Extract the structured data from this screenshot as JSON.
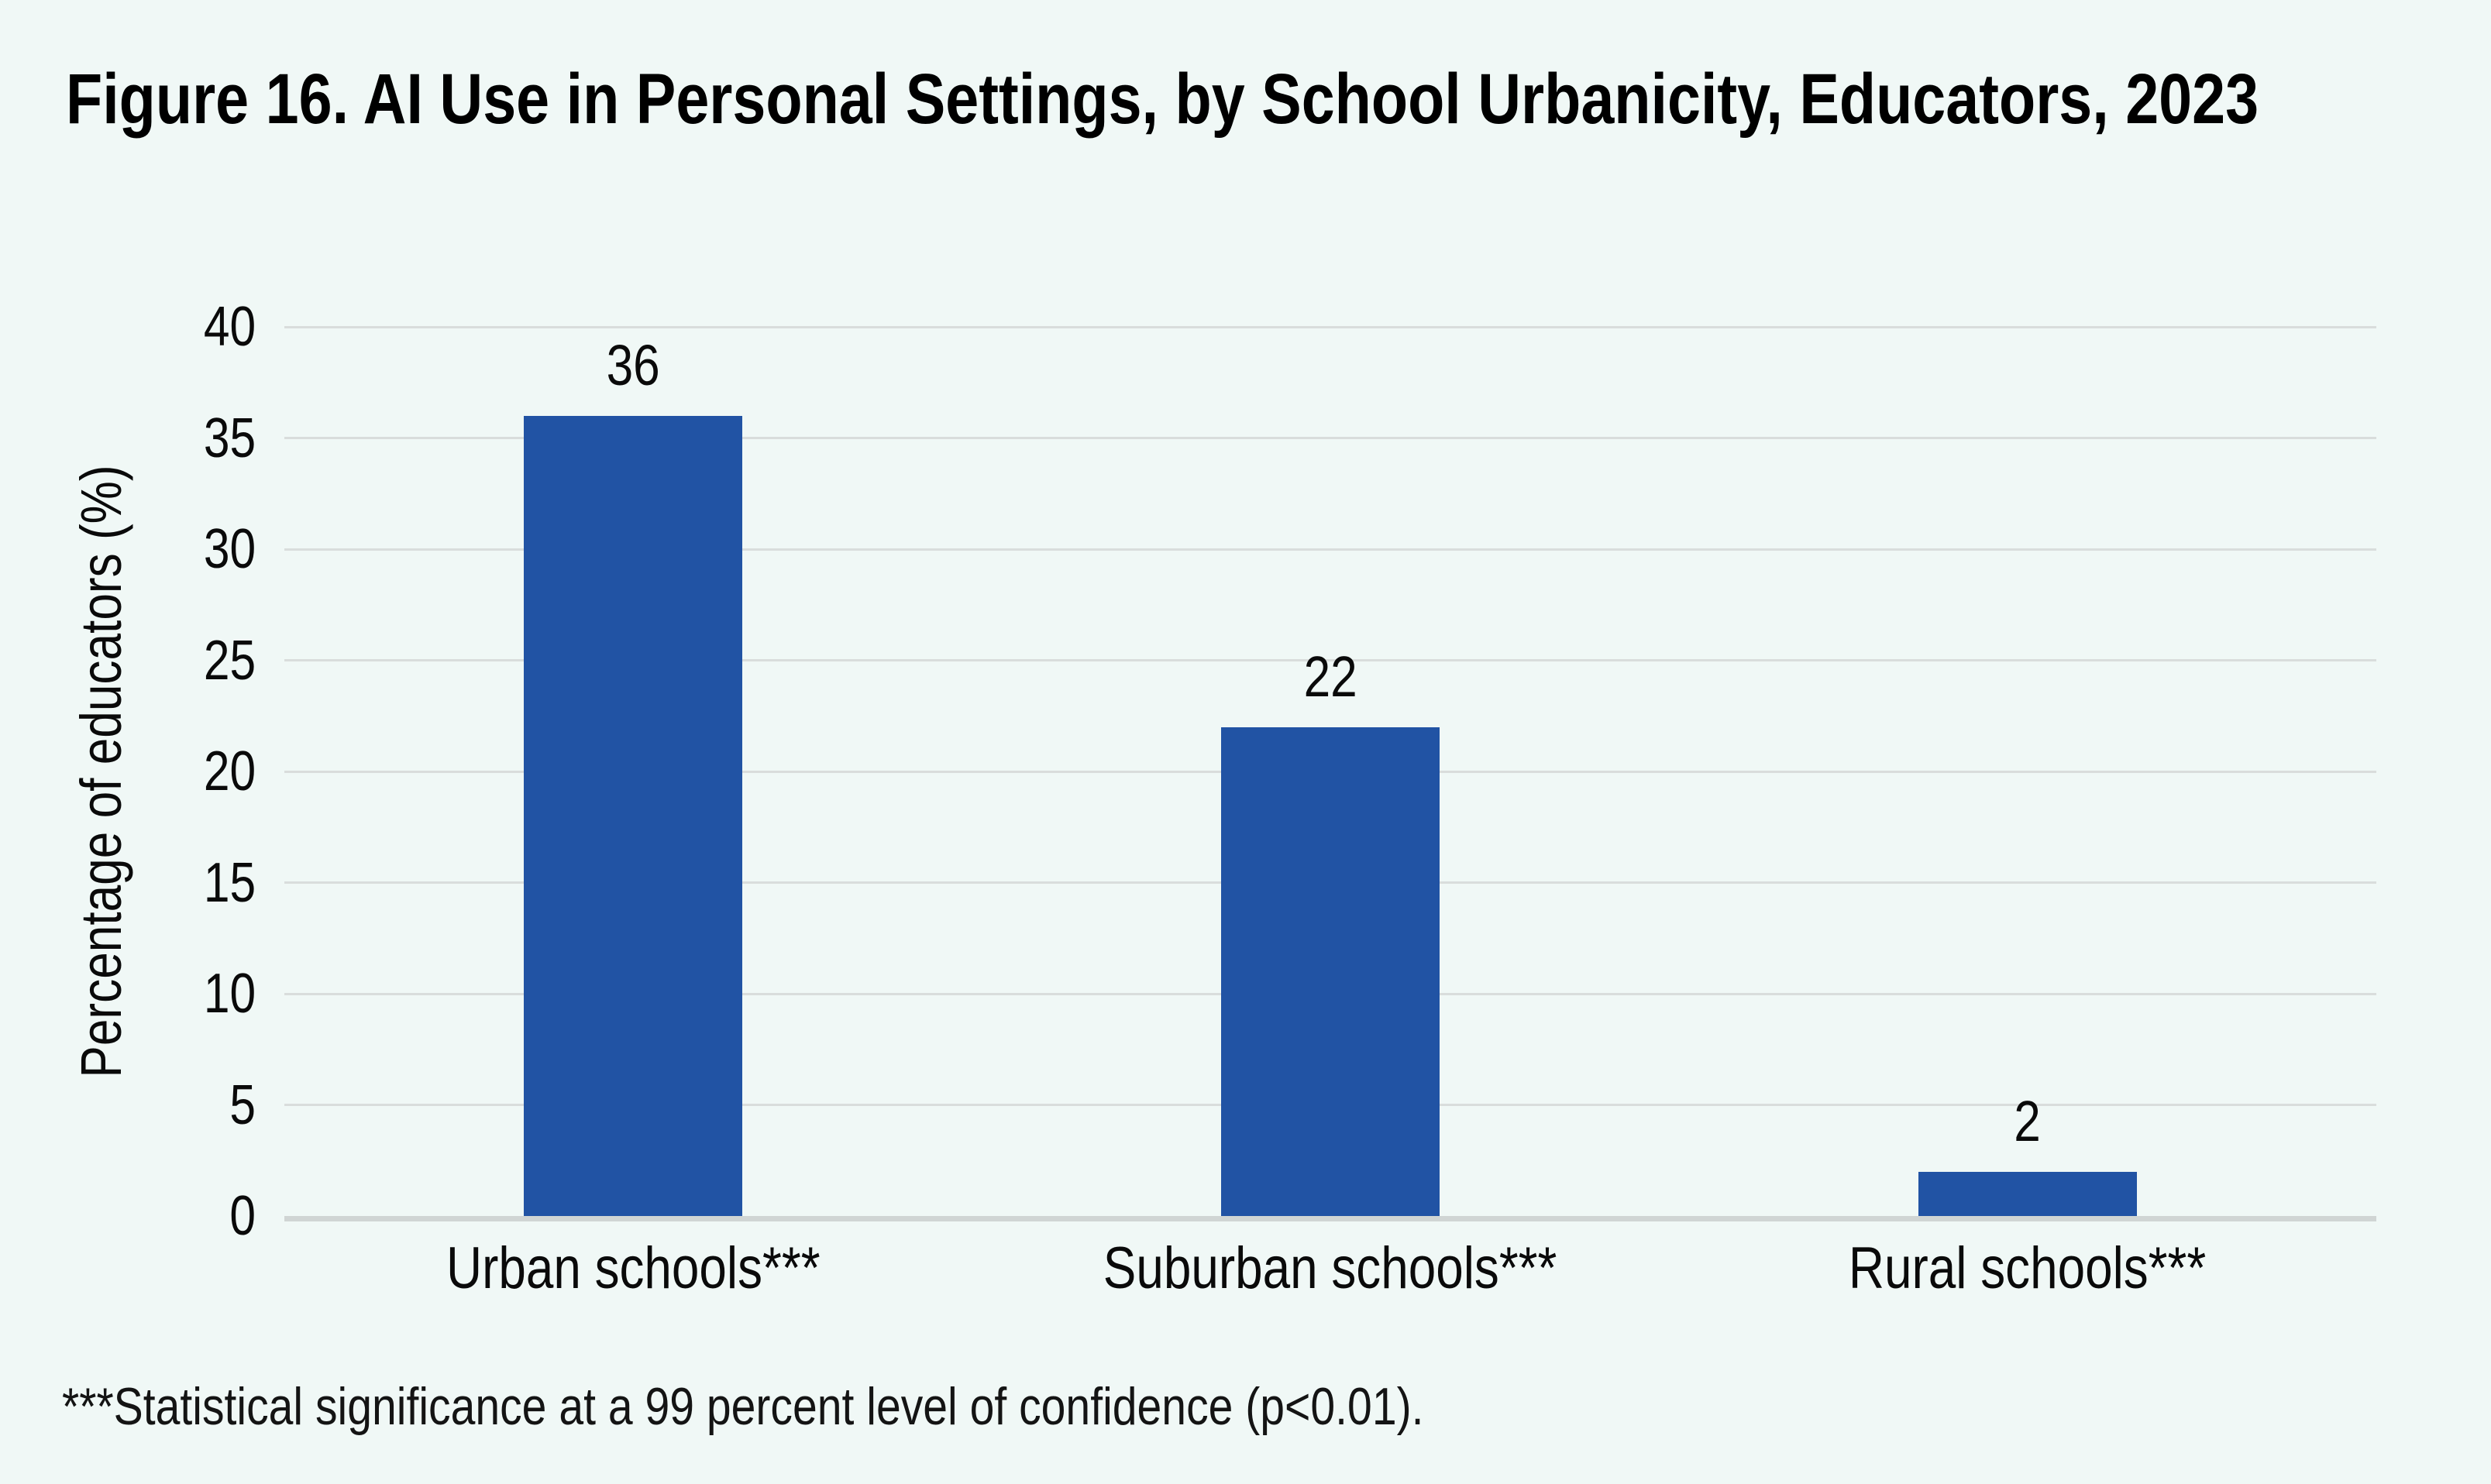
{
  "title": "Figure 16. AI Use in Personal Settings, by School Urbanicity, Educators, 2023",
  "footnote": "***Statistical significance at a 99 percent level of confidence (p<0.01).",
  "colors": {
    "background": "#F0F8F6",
    "bar": "#2153A4",
    "gridline": "#D9DDDC",
    "axis_line": "#D0D5D4",
    "text": "#0A0A0A"
  },
  "chart_data": {
    "type": "bar",
    "categories": [
      "Urban schools***",
      "Suburban schools***",
      "Rural schools***"
    ],
    "values": [
      36,
      22,
      2
    ],
    "bar_labels": [
      "36",
      "22",
      "2"
    ],
    "title": "Figure 16. AI Use in Personal Settings, by School Urbanicity, Educators, 2023",
    "xlabel": "",
    "ylabel": "Percentage of educators (%)",
    "ylim": [
      0,
      40
    ],
    "yticks": [
      0,
      5,
      10,
      15,
      20,
      25,
      30,
      35,
      40
    ],
    "grid": "horizontal gridlines on",
    "legend": "none"
  }
}
